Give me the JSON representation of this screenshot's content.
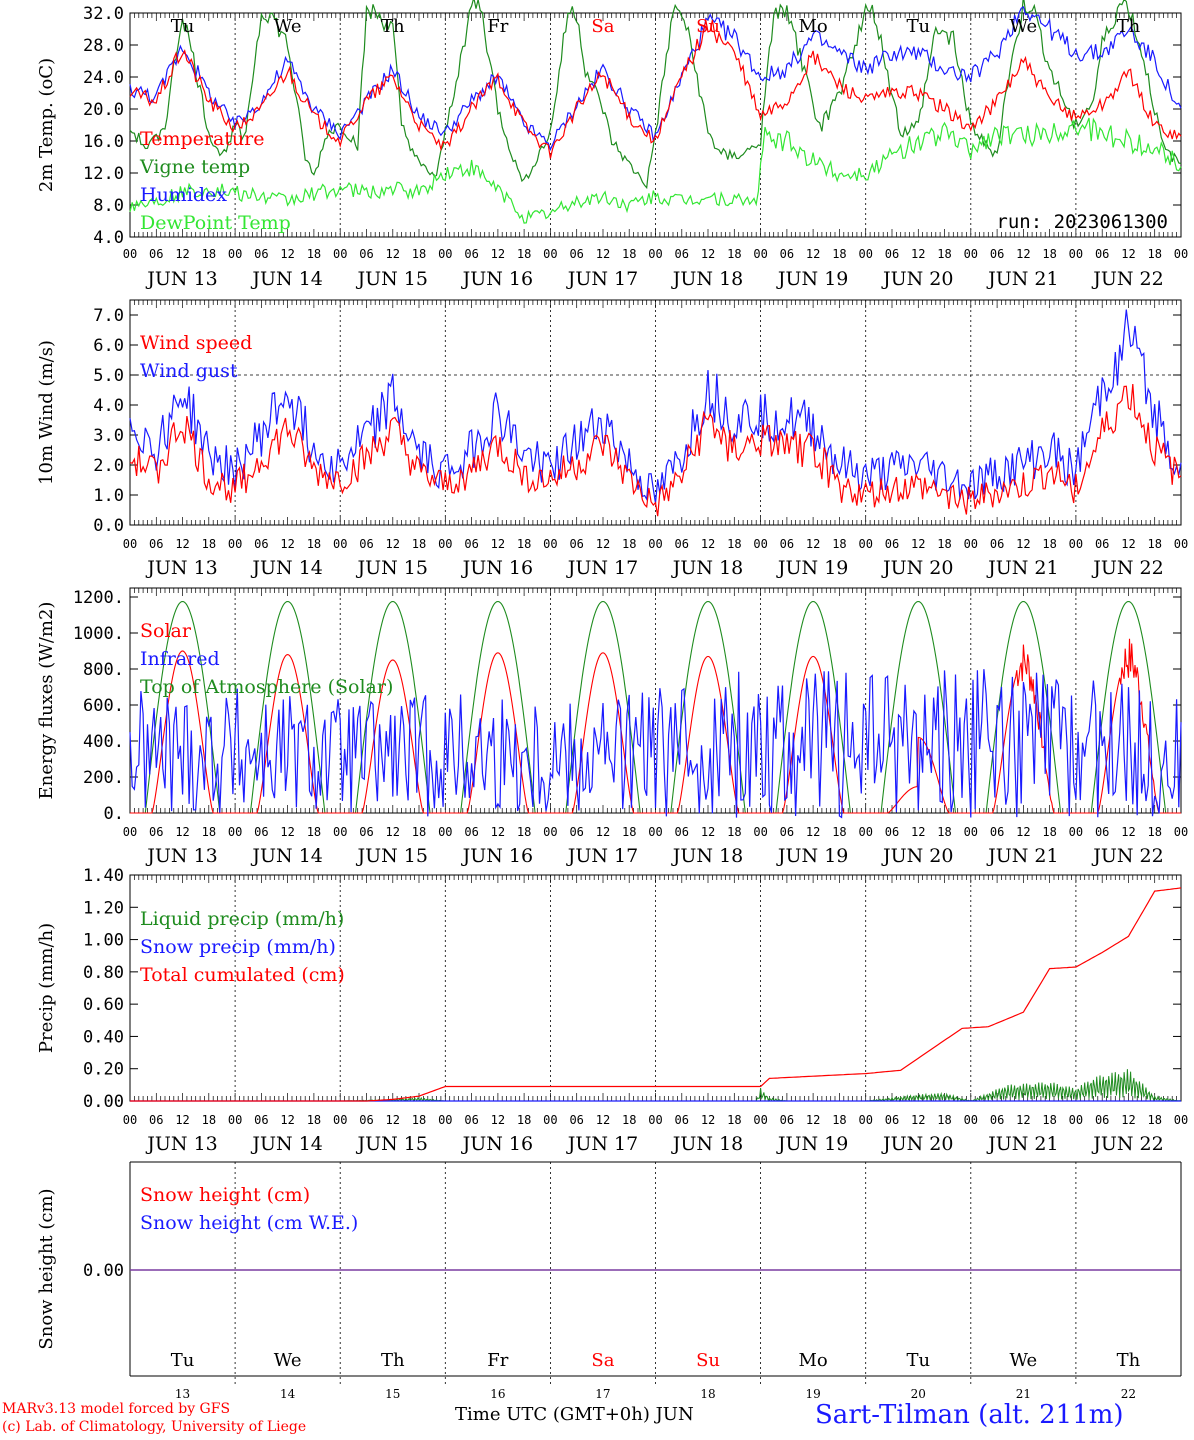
{
  "colors": {
    "red": "#ff0000",
    "green": "#1f8c1f",
    "blue": "#1a1aff",
    "lightgreen": "#33e633",
    "purple": "#7a3ca0",
    "axis": "#000000"
  },
  "day_names": [
    "Tu",
    "We",
    "Th",
    "Fr",
    "Sa",
    "Su",
    "Mo",
    "Tu",
    "We",
    "Th"
  ],
  "weekend_days": [
    4,
    5
  ],
  "hour_ticks": [
    "00",
    "06",
    "12",
    "18"
  ],
  "date_labels": [
    "JUN 13",
    "JUN 14",
    "JUN 15",
    "JUN 16",
    "JUN 17",
    "JUN 18",
    "JUN 19",
    "JUN 20",
    "JUN 21",
    "JUN 22"
  ],
  "day_numbers": [
    "13",
    "14",
    "15",
    "16",
    "17",
    "18",
    "19",
    "20",
    "21",
    "22"
  ],
  "footer": {
    "left_line1": "MARv3.13 model forced by GFS",
    "left_line2": "(c) Lab. of Climatology, University of Liege",
    "xaxis_title": "Time UTC (GMT+0h) JUN",
    "station": "Sart-Tilman (alt. 211m)"
  },
  "chart_data": [
    {
      "type": "line",
      "ylabel": "2m Temp. (oC)",
      "ylim": [
        4.0,
        32.0
      ],
      "yticks": [
        "32.0",
        "28.0",
        "24.0",
        "20.0",
        "16.0",
        "12.0",
        "8.0",
        "4.0"
      ],
      "run_label": "run: 2023061300",
      "x_unit": "hours since 2023-06-13 00 UTC",
      "series": [
        {
          "name": "Temperature",
          "color": "red",
          "x": [
            0,
            6,
            12,
            18,
            24,
            30,
            36,
            42,
            48,
            54,
            60,
            66,
            72,
            78,
            84,
            90,
            96,
            102,
            108,
            114,
            120,
            126,
            132,
            138,
            144,
            150,
            156,
            162,
            168,
            174,
            180,
            186,
            192,
            198,
            204,
            210,
            216,
            222,
            228,
            234,
            240
          ],
          "values": [
            22,
            21,
            27.5,
            21,
            17.5,
            20,
            25,
            19,
            16,
            21,
            24,
            18,
            15,
            20,
            24,
            18,
            14.5,
            20,
            24.5,
            19,
            16,
            24,
            30.5,
            27,
            19,
            21,
            26.5,
            23,
            21,
            22,
            22,
            20,
            17.5,
            21,
            26,
            21,
            19,
            20.5,
            24.5,
            18,
            16.5
          ]
        },
        {
          "name": "Vigne temp",
          "color": "green",
          "x": [
            0,
            4,
            8,
            12,
            15,
            18,
            21,
            24,
            26,
            30,
            32,
            36,
            40,
            42,
            45,
            48,
            52,
            54,
            56,
            60,
            62,
            66,
            70,
            72,
            78,
            80,
            84,
            88,
            90,
            96,
            100,
            102,
            104,
            108,
            110,
            114,
            118,
            120,
            124,
            126,
            128,
            132,
            134,
            138,
            142,
            144,
            147,
            150,
            154,
            156,
            158,
            162,
            166,
            168,
            170,
            174,
            176,
            180,
            184,
            188,
            192,
            196,
            198,
            200,
            204,
            206,
            210,
            214,
            216,
            220,
            222,
            226,
            228,
            232,
            236,
            240
          ],
          "values": [
            17.5,
            15,
            18,
            32,
            25,
            17,
            14,
            18,
            16,
            32,
            32,
            28,
            14,
            11.5,
            17,
            18,
            15.5,
            32,
            32,
            30,
            18,
            13,
            11.5,
            17,
            33,
            33,
            20,
            13,
            11,
            17,
            32,
            32,
            25,
            20,
            16,
            13,
            10.5,
            17,
            32,
            32,
            28,
            17,
            15,
            14,
            15,
            16,
            32,
            32,
            25,
            20,
            18,
            22,
            29,
            32,
            32,
            22,
            17,
            18,
            30,
            29,
            18,
            15,
            14.5,
            22,
            33,
            33,
            25,
            20,
            18,
            21,
            28,
            33,
            33,
            25,
            15,
            13
          ]
        },
        {
          "name": "Humidex",
          "color": "blue",
          "x": [
            0,
            6,
            12,
            18,
            24,
            30,
            36,
            42,
            48,
            54,
            60,
            66,
            72,
            78,
            84,
            90,
            96,
            102,
            108,
            114,
            120,
            126,
            132,
            138,
            144,
            150,
            156,
            162,
            168,
            174,
            180,
            186,
            192,
            198,
            204,
            210,
            216,
            222,
            228,
            234,
            240
          ],
          "values": [
            22.5,
            21.5,
            28,
            22,
            18,
            21,
            26,
            20,
            17,
            21,
            25,
            19,
            17,
            21,
            24,
            18,
            15.5,
            20.5,
            25,
            20,
            16.5,
            24,
            31,
            29,
            24,
            25,
            29,
            27,
            25,
            27,
            27,
            25,
            24,
            27,
            33,
            30,
            27,
            27,
            30,
            26,
            19.5
          ]
        },
        {
          "name": "DewPoint Temp",
          "color": "lightgreen",
          "x": [
            0,
            6,
            12,
            18,
            24,
            30,
            36,
            42,
            48,
            54,
            60,
            66,
            72,
            78,
            84,
            90,
            96,
            102,
            108,
            114,
            120,
            126,
            132,
            138,
            143,
            145,
            150,
            156,
            162,
            168,
            174,
            180,
            186,
            192,
            198,
            204,
            210,
            216,
            222,
            228,
            234,
            240
          ],
          "values": [
            8,
            8.5,
            9.5,
            10,
            9.5,
            9,
            8.5,
            9.5,
            10,
            9.5,
            10,
            9.5,
            12,
            12.5,
            10,
            6.5,
            7,
            8.5,
            9,
            8,
            9,
            8.5,
            9,
            8.5,
            8.5,
            16.5,
            16,
            13.5,
            12,
            12,
            14,
            16,
            17,
            15,
            17,
            16.5,
            17,
            18,
            17,
            16,
            15,
            13
          ]
        }
      ]
    },
    {
      "type": "line",
      "ylabel": "10m Wind (m/s)",
      "ylim": [
        0.0,
        7.5
      ],
      "yticks": [
        "7.0",
        "6.0",
        "5.0",
        "4.0",
        "3.0",
        "2.0",
        "1.0",
        "0.0"
      ],
      "reference_line": 5.0,
      "x_unit": "hours since 2023-06-13 00 UTC",
      "series": [
        {
          "name": "Wind speed",
          "color": "red",
          "x": [
            0,
            6,
            12,
            18,
            24,
            30,
            36,
            42,
            48,
            54,
            60,
            66,
            72,
            78,
            84,
            90,
            96,
            102,
            108,
            114,
            120,
            126,
            132,
            138,
            144,
            150,
            156,
            162,
            168,
            174,
            180,
            186,
            192,
            198,
            204,
            210,
            216,
            222,
            228,
            234,
            240
          ],
          "values": [
            2.2,
            1.8,
            3.5,
            1.5,
            1.2,
            2.2,
            3.2,
            1.8,
            1.5,
            2.2,
            3.2,
            1.7,
            1.3,
            1.8,
            2.7,
            1.7,
            1.5,
            2,
            2.7,
            1.5,
            0.6,
            1.6,
            3.5,
            2.5,
            2.8,
            2.6,
            2.5,
            1.3,
            1.0,
            1.2,
            1.3,
            1.1,
            0.8,
            1.1,
            1.3,
            1.8,
            1.2,
            3.0,
            4.5,
            2.5,
            1.5
          ]
        },
        {
          "name": "Wind gust",
          "color": "blue",
          "x": [
            0,
            6,
            12,
            18,
            24,
            30,
            36,
            42,
            48,
            54,
            60,
            66,
            72,
            78,
            84,
            90,
            96,
            102,
            108,
            114,
            120,
            126,
            132,
            138,
            144,
            150,
            156,
            162,
            168,
            174,
            180,
            186,
            192,
            198,
            204,
            210,
            216,
            222,
            228,
            234,
            240
          ],
          "values": [
            3.5,
            2.5,
            4.5,
            2.3,
            1.8,
            3.0,
            4.5,
            2.5,
            2.0,
            3.0,
            4.2,
            2.3,
            1.8,
            2.5,
            3.8,
            2.3,
            2.0,
            2.7,
            3.5,
            2.0,
            0.9,
            2.3,
            4.5,
            3.5,
            3.7,
            3.5,
            3.3,
            2.0,
            1.6,
            1.8,
            2.0,
            1.6,
            1.3,
            1.7,
            2.0,
            2.5,
            1.8,
            4.5,
            6.5,
            3.8,
            1.8
          ]
        }
      ]
    },
    {
      "type": "line",
      "ylabel": "Energy fluxes (W/m2)",
      "ylim": [
        0,
        1250
      ],
      "yticks": [
        "1200.",
        "1000.",
        "800.",
        "600.",
        "400.",
        "200.",
        "0."
      ],
      "x_unit": "hours since 2023-06-13 00 UTC",
      "series": [
        {
          "name": "Solar",
          "color": "red",
          "peaks": [
            900,
            880,
            850,
            890,
            890,
            870,
            870,
            420,
            840,
            860
          ]
        },
        {
          "name": "Infrared",
          "color": "blue",
          "x": [
            0,
            24,
            48,
            72,
            96,
            120,
            144,
            168,
            192,
            216,
            240
          ],
          "values": [
            330,
            340,
            310,
            330,
            320,
            340,
            390,
            380,
            390,
            380,
            320
          ]
        },
        {
          "name": "Top of Atmosphere (Solar)",
          "color": "green",
          "peaks": [
            1175,
            1175,
            1175,
            1175,
            1175,
            1175,
            1175,
            1175,
            1175,
            1175
          ]
        }
      ]
    },
    {
      "type": "line",
      "ylabel": "Precip (mm/h)",
      "ylim": [
        0.0,
        1.4
      ],
      "yticks": [
        "1.40",
        "1.20",
        "1.00",
        "0.80",
        "0.60",
        "0.40",
        "0.20",
        "0.00"
      ],
      "x_unit": "hours since 2023-06-13 00 UTC",
      "series": [
        {
          "name": "Liquid precip (mm/h)",
          "color": "green",
          "x": [
            0,
            48,
            60,
            66,
            72,
            78,
            96,
            143,
            144,
            146,
            150,
            168,
            180,
            186,
            192,
            200,
            210,
            216,
            220,
            228,
            234,
            240
          ],
          "values": [
            0,
            0,
            0.01,
            0.02,
            0,
            0,
            0,
            0,
            0.08,
            0.02,
            0,
            0,
            0.04,
            0.05,
            0,
            0.1,
            0.12,
            0.08,
            0.15,
            0.2,
            0.03,
            0
          ]
        },
        {
          "name": "Snow precip (mm/h)",
          "color": "blue",
          "x": [
            0,
            240
          ],
          "values": [
            0,
            0
          ]
        },
        {
          "name": "Total cumulated (cm)",
          "color": "red",
          "x": [
            0,
            54,
            60,
            66,
            72,
            144,
            146,
            168,
            176,
            190,
            196,
            204,
            210,
            216,
            222,
            228,
            234,
            240
          ],
          "values": [
            0,
            0,
            0.01,
            0.03,
            0.09,
            0.09,
            0.14,
            0.17,
            0.19,
            0.45,
            0.46,
            0.55,
            0.82,
            0.83,
            0.92,
            1.02,
            1.3,
            1.32
          ]
        }
      ]
    },
    {
      "type": "line",
      "ylabel": "Snow height (cm)",
      "ylim": [
        -1,
        1
      ],
      "yticks": [
        "0.00"
      ],
      "x_unit": "hours since 2023-06-13 00 UTC",
      "series": [
        {
          "name": "Snow height (cm)",
          "color": "red",
          "x": [
            0,
            240
          ],
          "values": [
            0,
            0
          ]
        },
        {
          "name": "Snow height (cm W.E.)",
          "color": "blue",
          "x": [
            0,
            240
          ],
          "values": [
            0,
            0
          ]
        }
      ]
    }
  ]
}
